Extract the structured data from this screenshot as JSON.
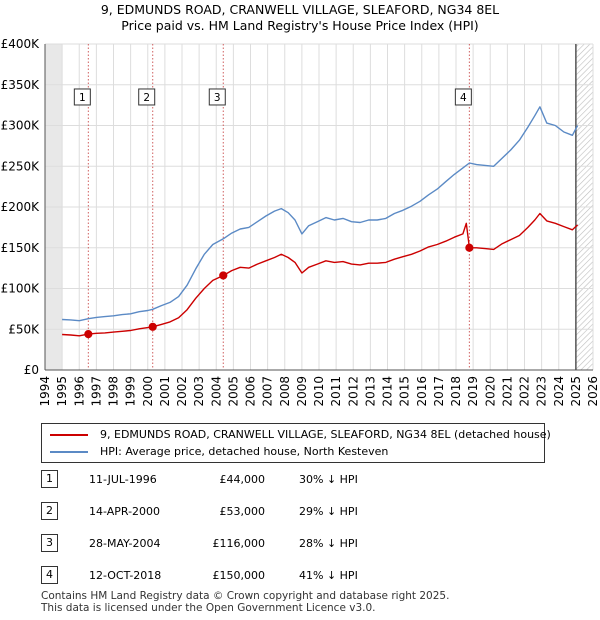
{
  "title_line1": "9, EDMUNDS ROAD, CRANWELL VILLAGE, SLEAFORD, NG34 8EL",
  "title_line2": "Price paid vs. HM Land Registry's House Price Index (HPI)",
  "chart_data": {
    "type": "line",
    "x_range": [
      1994,
      2026
    ],
    "y_range": [
      0,
      400000
    ],
    "x_ticks": [
      "1994",
      "1995",
      "1996",
      "1997",
      "1998",
      "1999",
      "2000",
      "2001",
      "2002",
      "2003",
      "2004",
      "2005",
      "2006",
      "2007",
      "2008",
      "2009",
      "2010",
      "2011",
      "2012",
      "2013",
      "2014",
      "2015",
      "2016",
      "2017",
      "2018",
      "2019",
      "2020",
      "2021",
      "2022",
      "2023",
      "2024",
      "2025",
      "2026"
    ],
    "y_ticks": [
      {
        "value": 0,
        "label": "£0"
      },
      {
        "value": 50000,
        "label": "£50K"
      },
      {
        "value": 100000,
        "label": "£100K"
      },
      {
        "value": 150000,
        "label": "£150K"
      },
      {
        "value": 200000,
        "label": "£200K"
      },
      {
        "value": 250000,
        "label": "£250K"
      },
      {
        "value": 300000,
        "label": "£300K"
      },
      {
        "value": 350000,
        "label": "£350K"
      },
      {
        "value": 400000,
        "label": "£400K"
      }
    ],
    "shaded_before": 1995.0,
    "hatched_after": 2025.0,
    "series": [
      {
        "name": "9, EDMUNDS ROAD, CRANWELL VILLAGE, SLEAFORD, NG34 8EL (detached house)",
        "color": "#cc0000",
        "points": [
          [
            1995.0,
            43500
          ],
          [
            1995.5,
            43000
          ],
          [
            1996.0,
            42000
          ],
          [
            1996.53,
            44000
          ],
          [
            1997.0,
            45000
          ],
          [
            1997.5,
            45500
          ],
          [
            1998.0,
            46500
          ],
          [
            1998.5,
            47500
          ],
          [
            1999.0,
            48500
          ],
          [
            1999.5,
            50500
          ],
          [
            2000.0,
            52000
          ],
          [
            2000.29,
            53000
          ],
          [
            2000.8,
            56000
          ],
          [
            2001.3,
            59000
          ],
          [
            2001.8,
            64000
          ],
          [
            2002.3,
            74000
          ],
          [
            2002.8,
            88000
          ],
          [
            2003.3,
            100000
          ],
          [
            2003.8,
            110000
          ],
          [
            2004.41,
            116000
          ],
          [
            2004.9,
            122000
          ],
          [
            2005.4,
            126000
          ],
          [
            2005.9,
            125000
          ],
          [
            2006.4,
            130000
          ],
          [
            2006.9,
            134000
          ],
          [
            2007.4,
            138000
          ],
          [
            2007.8,
            142000
          ],
          [
            2008.2,
            138000
          ],
          [
            2008.6,
            132000
          ],
          [
            2009.0,
            119000
          ],
          [
            2009.4,
            126000
          ],
          [
            2009.9,
            130000
          ],
          [
            2010.4,
            134000
          ],
          [
            2010.9,
            132000
          ],
          [
            2011.4,
            133000
          ],
          [
            2011.9,
            130000
          ],
          [
            2012.4,
            129000
          ],
          [
            2012.9,
            131000
          ],
          [
            2013.4,
            131000
          ],
          [
            2013.9,
            132000
          ],
          [
            2014.4,
            136000
          ],
          [
            2014.9,
            139000
          ],
          [
            2015.4,
            142000
          ],
          [
            2015.9,
            146000
          ],
          [
            2016.4,
            151000
          ],
          [
            2016.9,
            154000
          ],
          [
            2017.4,
            158000
          ],
          [
            2017.9,
            163000
          ],
          [
            2018.4,
            167000
          ],
          [
            2018.6,
            180000
          ],
          [
            2018.78,
            150000
          ],
          [
            2019.2,
            150000
          ],
          [
            2019.7,
            149000
          ],
          [
            2020.2,
            148000
          ],
          [
            2020.7,
            155000
          ],
          [
            2021.2,
            160000
          ],
          [
            2021.7,
            165000
          ],
          [
            2022.2,
            175000
          ],
          [
            2022.6,
            184000
          ],
          [
            2022.9,
            192000
          ],
          [
            2023.3,
            183000
          ],
          [
            2023.8,
            180000
          ],
          [
            2024.3,
            176000
          ],
          [
            2024.8,
            172000
          ],
          [
            2025.1,
            178000
          ]
        ]
      },
      {
        "name": "HPI: Average price, detached house, North Kesteven",
        "color": "#5b8ac5",
        "points": [
          [
            1995.0,
            62000
          ],
          [
            1995.5,
            61500
          ],
          [
            1996.0,
            60500
          ],
          [
            1996.53,
            63000
          ],
          [
            1997.0,
            64500
          ],
          [
            1997.5,
            65500
          ],
          [
            1998.0,
            66500
          ],
          [
            1998.5,
            68000
          ],
          [
            1999.0,
            69000
          ],
          [
            1999.5,
            71500
          ],
          [
            2000.0,
            73000
          ],
          [
            2000.29,
            74500
          ],
          [
            2000.8,
            79000
          ],
          [
            2001.3,
            83000
          ],
          [
            2001.8,
            90000
          ],
          [
            2002.3,
            104000
          ],
          [
            2002.8,
            124000
          ],
          [
            2003.3,
            142000
          ],
          [
            2003.8,
            154000
          ],
          [
            2004.41,
            161000
          ],
          [
            2004.9,
            168000
          ],
          [
            2005.4,
            173000
          ],
          [
            2005.9,
            175000
          ],
          [
            2006.4,
            182000
          ],
          [
            2006.9,
            189000
          ],
          [
            2007.4,
            195000
          ],
          [
            2007.8,
            198000
          ],
          [
            2008.2,
            193000
          ],
          [
            2008.6,
            184000
          ],
          [
            2009.0,
            167000
          ],
          [
            2009.4,
            177000
          ],
          [
            2009.9,
            182000
          ],
          [
            2010.4,
            187000
          ],
          [
            2010.9,
            184000
          ],
          [
            2011.4,
            186000
          ],
          [
            2011.9,
            182000
          ],
          [
            2012.4,
            181000
          ],
          [
            2012.9,
            184000
          ],
          [
            2013.4,
            184000
          ],
          [
            2013.9,
            186000
          ],
          [
            2014.4,
            192000
          ],
          [
            2014.9,
            196000
          ],
          [
            2015.4,
            201000
          ],
          [
            2015.9,
            207000
          ],
          [
            2016.4,
            215000
          ],
          [
            2016.9,
            222000
          ],
          [
            2017.4,
            231000
          ],
          [
            2017.9,
            240000
          ],
          [
            2018.4,
            248000
          ],
          [
            2018.78,
            254000
          ],
          [
            2019.2,
            252000
          ],
          [
            2019.7,
            251000
          ],
          [
            2020.2,
            250000
          ],
          [
            2020.7,
            260000
          ],
          [
            2021.2,
            270000
          ],
          [
            2021.7,
            282000
          ],
          [
            2022.2,
            298000
          ],
          [
            2022.6,
            312000
          ],
          [
            2022.9,
            323000
          ],
          [
            2023.3,
            303000
          ],
          [
            2023.8,
            300000
          ],
          [
            2024.3,
            292000
          ],
          [
            2024.8,
            288000
          ],
          [
            2025.1,
            300000
          ]
        ]
      }
    ],
    "sales": [
      {
        "num": "1",
        "x": 1996.53,
        "price": 44000
      },
      {
        "num": "2",
        "x": 2000.29,
        "price": 53000
      },
      {
        "num": "3",
        "x": 2004.41,
        "price": 116000
      },
      {
        "num": "4",
        "x": 2018.78,
        "price": 150000
      }
    ],
    "marker_label_y": 335000
  },
  "legend": {
    "red_label": "9, EDMUNDS ROAD, CRANWELL VILLAGE, SLEAFORD, NG34 8EL (detached house)",
    "blue_label": "HPI: Average price, detached house, North Kesteven"
  },
  "transactions": [
    {
      "num": "1",
      "date": "11-JUL-1996",
      "price": "£44,000",
      "hpi": "30% ↓ HPI"
    },
    {
      "num": "2",
      "date": "14-APR-2000",
      "price": "£53,000",
      "hpi": "29% ↓ HPI"
    },
    {
      "num": "3",
      "date": "28-MAY-2004",
      "price": "£116,000",
      "hpi": "28% ↓ HPI"
    },
    {
      "num": "4",
      "date": "12-OCT-2018",
      "price": "£150,000",
      "hpi": "41% ↓ HPI"
    }
  ],
  "footer_line1": "Contains HM Land Registry data © Crown copyright and database right 2025.",
  "footer_line2": "This data is licensed under the Open Government Licence v3.0."
}
